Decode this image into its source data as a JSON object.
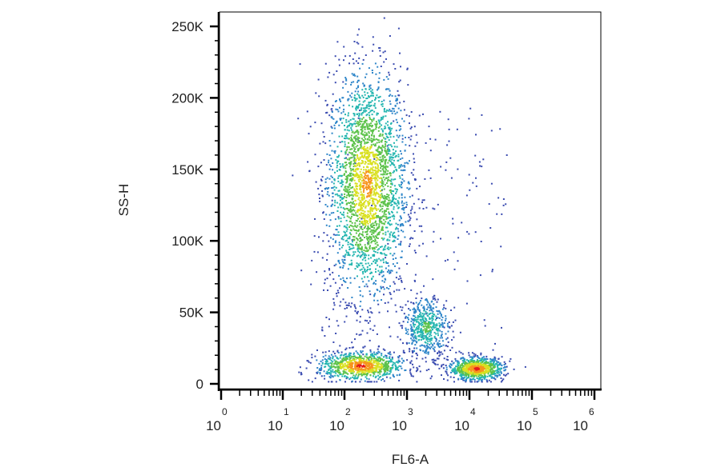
{
  "chart_data": {
    "type": "scatter",
    "subtype": "flow-cytometry-density-dot-plot",
    "xlabel": "FL6-A",
    "ylabel": "SS-H",
    "x_scale": "log",
    "x_ticks": [
      {
        "base": "10",
        "exp": "0",
        "decade": 0
      },
      {
        "base": "10",
        "exp": "1",
        "decade": 1
      },
      {
        "base": "10",
        "exp": "2",
        "decade": 2
      },
      {
        "base": "10",
        "exp": "3",
        "decade": 3
      },
      {
        "base": "10",
        "exp": "4",
        "decade": 4
      },
      {
        "base": "10",
        "exp": "5",
        "decade": 5
      },
      {
        "base": "10",
        "exp": "6",
        "decade": 6
      }
    ],
    "y_scale": "linear",
    "ylim": [
      0,
      260000
    ],
    "y_ticks": [
      {
        "label": "0",
        "value": 0
      },
      {
        "label": "50K",
        "value": 50000
      },
      {
        "label": "100K",
        "value": 100000
      },
      {
        "label": "150K",
        "value": 150000
      },
      {
        "label": "200K",
        "value": 200000
      },
      {
        "label": "250K",
        "value": 250000
      }
    ],
    "grid": false,
    "legend": "none",
    "density_colors": [
      "#3a4bb0",
      "#2f86c9",
      "#25b6b0",
      "#5cc24a",
      "#d9e021",
      "#f7941d",
      "#e31a1c"
    ],
    "populations": [
      {
        "x_decade_center": 2.35,
        "x_decade_spread": 0.32,
        "y_center": 140000,
        "y_spread": 40000,
        "count": 2600,
        "peak_density": 5
      },
      {
        "x_decade_center": 2.25,
        "x_decade_spread": 0.35,
        "y_center": 13000,
        "y_spread": 5000,
        "count": 900,
        "peak_density": 6
      },
      {
        "x_decade_center": 3.3,
        "x_decade_spread": 0.18,
        "y_center": 40000,
        "y_spread": 10000,
        "count": 500,
        "peak_density": 3
      },
      {
        "x_decade_center": 4.1,
        "x_decade_spread": 0.22,
        "y_center": 11000,
        "y_spread": 4000,
        "count": 850,
        "peak_density": 6
      }
    ]
  }
}
